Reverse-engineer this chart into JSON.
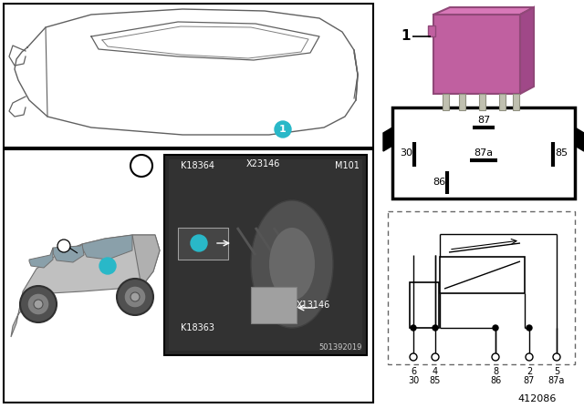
{
  "doc_number": "412086",
  "bg_color": "#ffffff",
  "teal_color": "#29b8c8",
  "relay_body_color": "#c060a0",
  "relay_body_light": "#d878b8",
  "relay_body_dark": "#a04888",
  "panel_border": "#000000",
  "photo_bg": "#3a3a3a",
  "photo_labels": [
    "K18364",
    "X23146",
    "M101",
    "K18363",
    "X13146"
  ],
  "photo_number": "501392019",
  "pin_diagram_pins": [
    "87",
    "30",
    "87a",
    "85",
    "86"
  ],
  "schematic_pins_row1": [
    "6",
    "4",
    "8",
    "2",
    "5"
  ],
  "schematic_pins_row2": [
    "30",
    "85",
    "86",
    "87",
    "87a"
  ]
}
